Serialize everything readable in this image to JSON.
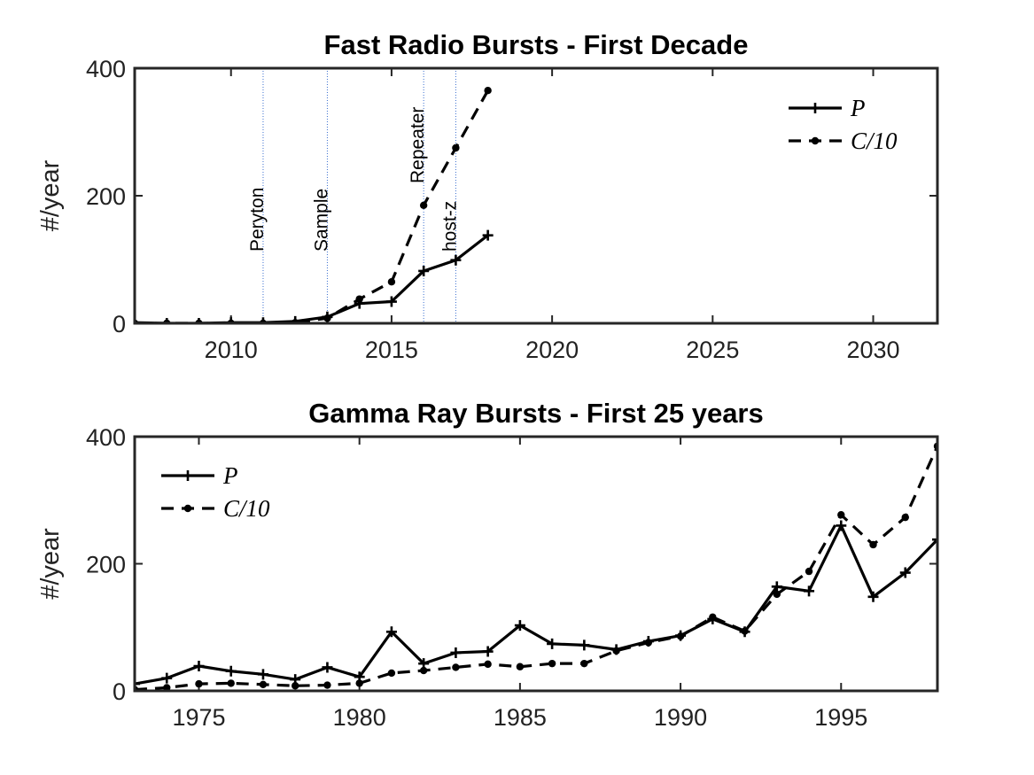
{
  "chart_data": [
    {
      "type": "line",
      "title": "Fast Radio Bursts - First Decade",
      "xlabel": "",
      "ylabel": "#/year",
      "xlim": [
        2007,
        2032
      ],
      "ylim": [
        0,
        400
      ],
      "xticks": [
        2010,
        2015,
        2020,
        2025,
        2030
      ],
      "yticks": [
        0,
        200,
        400
      ],
      "legend_position": "top-right",
      "series": [
        {
          "name": "P",
          "style": "solid-plus",
          "x": [
            2007,
            2008,
            2009,
            2010,
            2011,
            2012,
            2013,
            2014,
            2015,
            2016,
            2017,
            2018
          ],
          "values": [
            1,
            0,
            0,
            1,
            1,
            3,
            10,
            31,
            34,
            82,
            99,
            138
          ]
        },
        {
          "name": "C/10",
          "style": "dashed-dot",
          "x": [
            2007,
            2008,
            2009,
            2010,
            2011,
            2012,
            2013,
            2014,
            2015,
            2016,
            2017,
            2018
          ],
          "values": [
            0,
            0,
            0,
            0,
            0,
            1,
            8,
            38,
            65,
            185,
            275,
            365
          ]
        }
      ],
      "annotations": [
        {
          "x": 2011,
          "label": "Peryton"
        },
        {
          "x": 2013,
          "label": "Sample"
        },
        {
          "x": 2016,
          "label": "Repeater"
        },
        {
          "x": 2017,
          "label": "host-z"
        }
      ]
    },
    {
      "type": "line",
      "title": "Gamma Ray Bursts - First 25 years",
      "xlabel": "",
      "ylabel": "#/year",
      "xlim": [
        1973,
        1998
      ],
      "ylim": [
        0,
        400
      ],
      "xticks": [
        1975,
        1980,
        1985,
        1990,
        1995
      ],
      "yticks": [
        0,
        200,
        400
      ],
      "legend_position": "top-left",
      "series": [
        {
          "name": "P",
          "style": "solid-plus",
          "x": [
            1973,
            1974,
            1975,
            1976,
            1977,
            1978,
            1979,
            1980,
            1981,
            1982,
            1983,
            1984,
            1985,
            1986,
            1987,
            1988,
            1989,
            1990,
            1991,
            1992,
            1993,
            1994,
            1995,
            1996,
            1997,
            1998
          ],
          "values": [
            11,
            20,
            39,
            31,
            26,
            18,
            37,
            22,
            93,
            43,
            60,
            62,
            103,
            74,
            72,
            65,
            78,
            87,
            113,
            93,
            164,
            157,
            260,
            148,
            186,
            238
          ]
        },
        {
          "name": "C/10",
          "style": "dashed-dot",
          "x": [
            1973,
            1974,
            1975,
            1976,
            1977,
            1978,
            1979,
            1980,
            1981,
            1982,
            1983,
            1984,
            1985,
            1986,
            1987,
            1988,
            1989,
            1990,
            1991,
            1992,
            1993,
            1994,
            1995,
            1996,
            1997,
            1998
          ],
          "values": [
            2,
            5,
            11,
            12,
            10,
            8,
            9,
            12,
            28,
            32,
            37,
            42,
            38,
            43,
            43,
            63,
            76,
            86,
            116,
            94,
            152,
            188,
            277,
            230,
            273,
            385
          ]
        }
      ],
      "annotations": []
    }
  ]
}
